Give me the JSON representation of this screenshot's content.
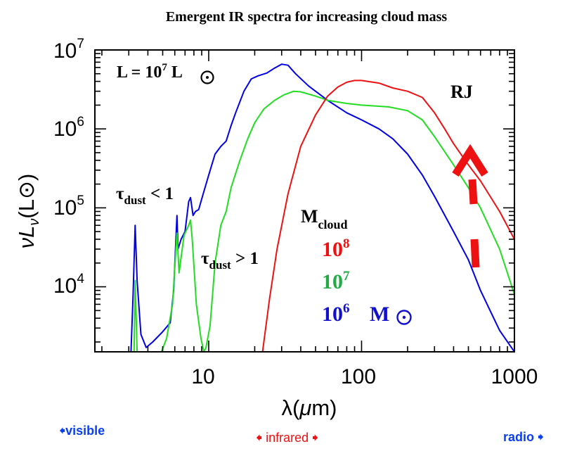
{
  "chart_data": {
    "type": "line",
    "title": "Emergent IR spectra  for  increasing cloud mass",
    "xlabel": {
      "main": "λ(",
      "mu": "μ",
      "unit": "m)"
    },
    "ylabel": {
      "prefix": "νL",
      "sub": "ν",
      "paren": "(L",
      "close": ")"
    },
    "xscale": "log",
    "yscale": "log",
    "xlim": [
      1.8,
      1000
    ],
    "ylim": [
      1500,
      10000000
    ],
    "x_ticks": [
      "10",
      "100",
      "1000"
    ],
    "y_ticks": [
      {
        "base": "10",
        "exp": "7",
        "value": 10000000
      },
      {
        "base": "10",
        "exp": "6",
        "value": 1000000
      },
      {
        "base": "10",
        "exp": "5",
        "value": 100000
      },
      {
        "base": "10",
        "exp": "4",
        "value": 10000
      }
    ],
    "series": [
      {
        "name": "1e6 Msun",
        "color": "#0000e6",
        "points": [
          [
            3.1,
            1500
          ],
          [
            3.2,
            8000
          ],
          [
            3.3,
            60000
          ],
          [
            3.4,
            12000
          ],
          [
            3.6,
            2500
          ],
          [
            3.9,
            1700
          ],
          [
            4.3,
            2000
          ],
          [
            5.0,
            2700
          ],
          [
            5.6,
            3500
          ],
          [
            5.9,
            9000
          ],
          [
            6.1,
            40000
          ],
          [
            6.2,
            80000
          ],
          [
            6.3,
            30000
          ],
          [
            6.6,
            40000
          ],
          [
            7.0,
            50000
          ],
          [
            7.4,
            120000
          ],
          [
            7.6,
            135000
          ],
          [
            7.9,
            80000
          ],
          [
            8.2,
            90000
          ],
          [
            8.6,
            95000
          ],
          [
            9.2,
            150000
          ],
          [
            10.0,
            260000
          ],
          [
            11.0,
            480000
          ],
          [
            12.0,
            600000
          ],
          [
            13.0,
            700000
          ],
          [
            14.0,
            1100000
          ],
          [
            15.0,
            1600000
          ],
          [
            17.0,
            3000000
          ],
          [
            19.0,
            4300000
          ],
          [
            21.0,
            4700000
          ],
          [
            24.0,
            5100000
          ],
          [
            27.0,
            5900000
          ],
          [
            30.0,
            6600000
          ],
          [
            33.0,
            6400000
          ],
          [
            37.0,
            5000000
          ],
          [
            45.0,
            3500000
          ],
          [
            60.0,
            2300000
          ],
          [
            80.0,
            1600000
          ],
          [
            100.0,
            1300000
          ],
          [
            130.0,
            1000000
          ],
          [
            160.0,
            750000
          ],
          [
            200.0,
            480000
          ],
          [
            250.0,
            260000
          ],
          [
            300.0,
            140000
          ],
          [
            400.0,
            50000
          ],
          [
            500.0,
            22000
          ],
          [
            600.0,
            9000
          ],
          [
            700.0,
            4800
          ],
          [
            800.0,
            2800
          ],
          [
            1000.0,
            1500
          ]
        ]
      },
      {
        "name": "1e7 Msun",
        "color": "#22dd22",
        "points": [
          [
            3.25,
            1500
          ],
          [
            3.3,
            12000
          ],
          [
            3.4,
            1500
          ],
          [
            4.9,
            1500
          ],
          [
            5.3,
            2200
          ],
          [
            5.8,
            6000
          ],
          [
            6.1,
            30000
          ],
          [
            6.2,
            48000
          ],
          [
            6.4,
            15000
          ],
          [
            6.9,
            45000
          ],
          [
            7.4,
            60000
          ],
          [
            7.6,
            70000
          ],
          [
            7.8,
            40000
          ],
          [
            8.3,
            6000
          ],
          [
            8.9,
            2200
          ],
          [
            9.3,
            1500
          ],
          [
            9.6,
            1700
          ],
          [
            10.2,
            3200
          ],
          [
            11.0,
            20000
          ],
          [
            12.0,
            60000
          ],
          [
            13.0,
            90000
          ],
          [
            14.0,
            180000
          ],
          [
            16.0,
            400000
          ],
          [
            18.0,
            750000
          ],
          [
            20.0,
            1200000
          ],
          [
            23.0,
            1800000
          ],
          [
            27.0,
            2300000
          ],
          [
            31.0,
            2700000
          ],
          [
            36.0,
            3000000
          ],
          [
            40.0,
            2950000
          ],
          [
            50.0,
            2600000
          ],
          [
            60.0,
            2300000
          ],
          [
            80.0,
            2100000
          ],
          [
            100.0,
            2000000
          ],
          [
            150.0,
            1900000
          ],
          [
            200.0,
            1700000
          ],
          [
            250.0,
            1300000
          ],
          [
            300.0,
            800000
          ],
          [
            400.0,
            350000
          ],
          [
            500.0,
            180000
          ],
          [
            600.0,
            100000
          ],
          [
            800.0,
            30000
          ],
          [
            1000.0,
            8000
          ]
        ]
      },
      {
        "name": "1e8 Msun",
        "color": "#ee1111",
        "points": [
          [
            22.5,
            1500
          ],
          [
            25.0,
            7000
          ],
          [
            28.0,
            30000
          ],
          [
            33.0,
            150000
          ],
          [
            40.0,
            600000
          ],
          [
            50.0,
            1500000
          ],
          [
            60.0,
            2600000
          ],
          [
            70.0,
            3400000
          ],
          [
            80.0,
            3900000
          ],
          [
            90.0,
            4100000
          ],
          [
            100.0,
            4100000
          ],
          [
            130.0,
            3800000
          ],
          [
            160.0,
            3300000
          ],
          [
            200.0,
            3000000
          ],
          [
            250.0,
            2500000
          ],
          [
            300.0,
            1600000
          ],
          [
            350.0,
            1000000
          ],
          [
            400.0,
            650000
          ],
          [
            500.0,
            350000
          ],
          [
            600.0,
            220000
          ],
          [
            800.0,
            90000
          ],
          [
            1000.0,
            40000
          ]
        ]
      }
    ],
    "annotations": {
      "luminosity": {
        "L": "L = 10",
        "exp": "7",
        "unit": " L"
      },
      "tau_thin": {
        "tau": "τ",
        "sub": "dust",
        "rest": " < 1"
      },
      "tau_thick": {
        "tau": "τ",
        "sub": "dust",
        "rest": " > 1"
      },
      "rj": "RJ",
      "mcloud": {
        "M": "M",
        "sub": "cloud"
      },
      "masses": [
        {
          "base": "10",
          "exp": "8",
          "color": "#ee1111"
        },
        {
          "base": "10",
          "exp": "7",
          "color": "#22aa44"
        },
        {
          "base": "10",
          "exp": "6",
          "color": "#1111cc"
        }
      ],
      "msun": "M",
      "arrow_color": "#ee1111"
    },
    "bands": {
      "visible": "visible",
      "infrared": "infrared",
      "radio": "radio"
    }
  },
  "colors": {
    "blue_band": "#0a3ff0",
    "red_band": "#ee1111"
  }
}
